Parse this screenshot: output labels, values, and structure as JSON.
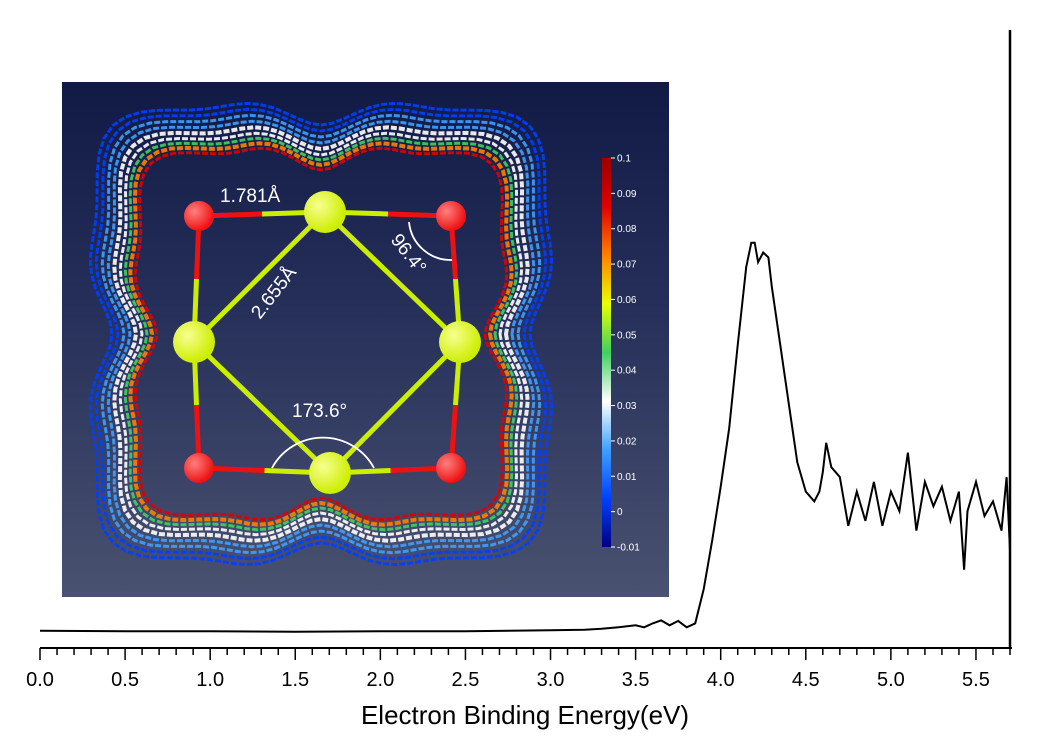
{
  "chart_data": {
    "type": "line",
    "title": "",
    "xlabel": "Electron Binding Energy(eV)",
    "ylabel": "",
    "xlim": [
      0.0,
      5.7
    ],
    "ylim": [
      0,
      1
    ],
    "x_ticks": [
      "0.0",
      "0.5",
      "1.0",
      "1.5",
      "2.0",
      "2.5",
      "3.0",
      "3.5",
      "4.0",
      "4.5",
      "5.0",
      "5.5"
    ],
    "x_tick_values": [
      0.0,
      0.5,
      1.0,
      1.5,
      2.0,
      2.5,
      3.0,
      3.5,
      4.0,
      4.5,
      5.0,
      5.5
    ],
    "grid": false,
    "series": [
      {
        "name": "photoelectron spectrum",
        "color": "#000000",
        "points": [
          [
            0.0,
            0.015
          ],
          [
            0.5,
            0.014
          ],
          [
            1.0,
            0.014
          ],
          [
            1.5,
            0.013
          ],
          [
            2.0,
            0.014
          ],
          [
            2.5,
            0.014
          ],
          [
            3.0,
            0.016
          ],
          [
            3.2,
            0.017
          ],
          [
            3.3,
            0.019
          ],
          [
            3.4,
            0.022
          ],
          [
            3.5,
            0.026
          ],
          [
            3.55,
            0.022
          ],
          [
            3.6,
            0.03
          ],
          [
            3.65,
            0.036
          ],
          [
            3.7,
            0.026
          ],
          [
            3.75,
            0.035
          ],
          [
            3.8,
            0.022
          ],
          [
            3.85,
            0.03
          ],
          [
            3.9,
            0.1
          ],
          [
            3.95,
            0.2
          ],
          [
            4.0,
            0.31
          ],
          [
            4.05,
            0.43
          ],
          [
            4.1,
            0.6
          ],
          [
            4.15,
            0.76
          ],
          [
            4.18,
            0.81
          ],
          [
            4.2,
            0.81
          ],
          [
            4.22,
            0.77
          ],
          [
            4.25,
            0.79
          ],
          [
            4.28,
            0.78
          ],
          [
            4.3,
            0.72
          ],
          [
            4.35,
            0.6
          ],
          [
            4.4,
            0.48
          ],
          [
            4.45,
            0.36
          ],
          [
            4.5,
            0.3
          ],
          [
            4.55,
            0.28
          ],
          [
            4.58,
            0.3
          ],
          [
            4.6,
            0.34
          ],
          [
            4.62,
            0.4
          ],
          [
            4.65,
            0.35
          ],
          [
            4.7,
            0.33
          ],
          [
            4.75,
            0.23
          ],
          [
            4.8,
            0.3
          ],
          [
            4.85,
            0.24
          ],
          [
            4.9,
            0.32
          ],
          [
            4.95,
            0.23
          ],
          [
            5.0,
            0.3
          ],
          [
            5.05,
            0.26
          ],
          [
            5.1,
            0.38
          ],
          [
            5.15,
            0.22
          ],
          [
            5.2,
            0.32
          ],
          [
            5.25,
            0.27
          ],
          [
            5.3,
            0.31
          ],
          [
            5.35,
            0.24
          ],
          [
            5.4,
            0.3
          ],
          [
            5.43,
            0.14
          ],
          [
            5.45,
            0.26
          ],
          [
            5.5,
            0.32
          ],
          [
            5.55,
            0.25
          ],
          [
            5.6,
            0.28
          ],
          [
            5.65,
            0.22
          ],
          [
            5.68,
            0.33
          ],
          [
            5.7,
            0.18
          ]
        ]
      }
    ],
    "cutoff_line_x": 5.7,
    "inset": {
      "type": "heatmap",
      "colorbar_ticks": [
        "0.1",
        "0.09",
        "0.08",
        "0.07",
        "0.06",
        "0.05",
        "0.04",
        "0.03",
        "0.02",
        "0.01",
        "0",
        "-0.01"
      ],
      "colorbar_range": [
        -0.01,
        0.1
      ],
      "colorbar_colors": [
        "#000080",
        "#0040ff",
        "#3fa0ff",
        "#ffffff",
        "#40d060",
        "#e8ff00",
        "#ff8000",
        "#e00000",
        "#990000"
      ],
      "annotations": {
        "bond_short": "1.781Å",
        "bond_long": "2.655Å",
        "angle_small": "96.4°",
        "angle_large": "173.6°"
      },
      "atoms": {
        "red_color": "#ee1111",
        "yellow_color": "#ccee00"
      }
    }
  }
}
